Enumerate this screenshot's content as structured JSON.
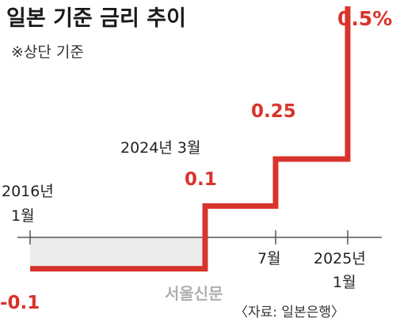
{
  "header": {
    "title": "일본 기준 금리 추이",
    "subtitle": "※상단 기준"
  },
  "footer": {
    "source": "〈자료: 일본은행〉",
    "watermark": "서울신문"
  },
  "colors": {
    "line": "#d8342c",
    "negative_fill": "#ececec",
    "axis": "#555555"
  },
  "chart_data": {
    "type": "line",
    "step": true,
    "title": "일본 기준 금리 추이",
    "subtitle": "※상단 기준",
    "series": [
      {
        "points": [
          {
            "date": "2016년 1월",
            "value": -0.1
          },
          {
            "date": "2024년 3월",
            "value": 0.1
          },
          {
            "date": "2024년 7월",
            "value": 0.25
          },
          {
            "date": "2025년 1월",
            "value": 0.5
          }
        ]
      }
    ],
    "tick_labels": [
      {
        "year": "2016년",
        "month": "1월"
      },
      {
        "year": "",
        "month": "7월"
      },
      {
        "year": "2025년",
        "month": "1월"
      }
    ],
    "event_label": "2024년 3월",
    "value_labels": [
      "-0.1",
      "0.1",
      "0.25",
      "0.5%"
    ],
    "baseline": 0,
    "source": "〈자료: 일본은행〉"
  }
}
